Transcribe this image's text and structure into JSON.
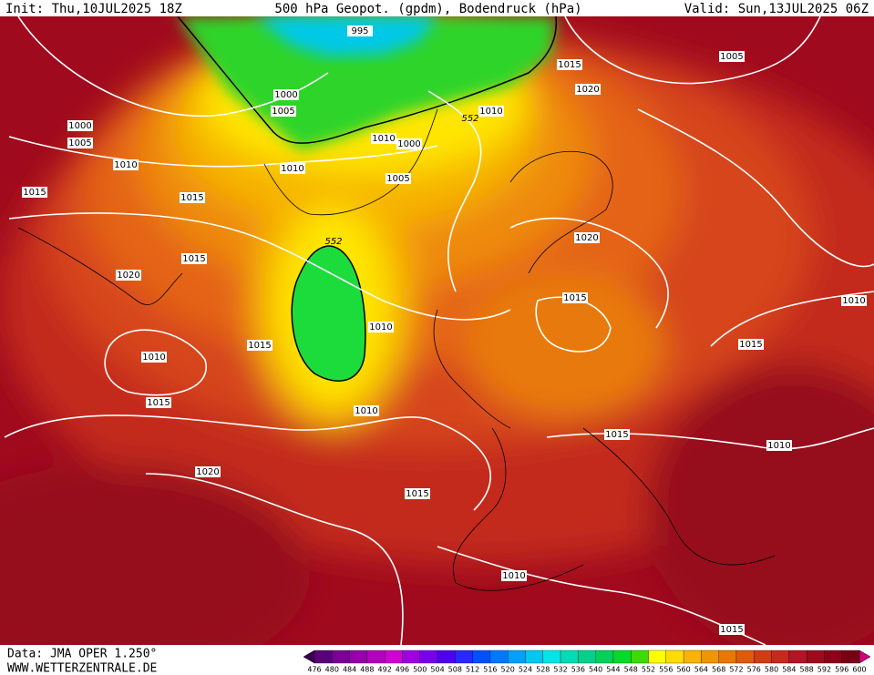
{
  "header": {
    "init": "Init: Thu,10JUL2025 18Z",
    "title": "500 hPa Geopot. (gpdm), Bodendruck (hPa)",
    "valid": "Valid: Sun,13JUL2025 06Z"
  },
  "map": {
    "isobar_labels": [
      995,
      1000,
      1005,
      1000,
      1005,
      1010,
      1015,
      1015,
      1010,
      1010,
      1000,
      1005,
      552,
      1010,
      1015,
      1020,
      1005,
      552,
      1015,
      1020,
      1010,
      1015,
      1010,
      1010,
      1015,
      1020,
      1015,
      1020,
      1015,
      1015,
      1010,
      1015,
      1010,
      1010,
      1015
    ]
  },
  "colorbar": {
    "labels": [
      476,
      480,
      484,
      488,
      492,
      496,
      500,
      504,
      508,
      512,
      516,
      520,
      524,
      528,
      532,
      536,
      540,
      544,
      548,
      552,
      556,
      560,
      564,
      568,
      572,
      576,
      580,
      584,
      588,
      592,
      596,
      600
    ],
    "colors": [
      "#3c0050",
      "#5a0078",
      "#7a0096",
      "#9600aa",
      "#b400be",
      "#d200d2",
      "#a000e6",
      "#7800f0",
      "#5000f0",
      "#2828ff",
      "#0050ff",
      "#0078ff",
      "#00a0ff",
      "#00c8f0",
      "#00e6e6",
      "#00dcb4",
      "#00d28c",
      "#00d25a",
      "#00dc28",
      "#3cdc00",
      "#ffff00",
      "#ffdc00",
      "#f8b400",
      "#f09600",
      "#e87800",
      "#e05a0a",
      "#d23c14",
      "#c8281e",
      "#b41423",
      "#a00a1e",
      "#8c0019",
      "#780014",
      "#d2007a"
    ]
  },
  "footer": {
    "source": "Data: JMA OPER 1.250°",
    "site": "WWW.WETTERZENTRALE.DE"
  }
}
